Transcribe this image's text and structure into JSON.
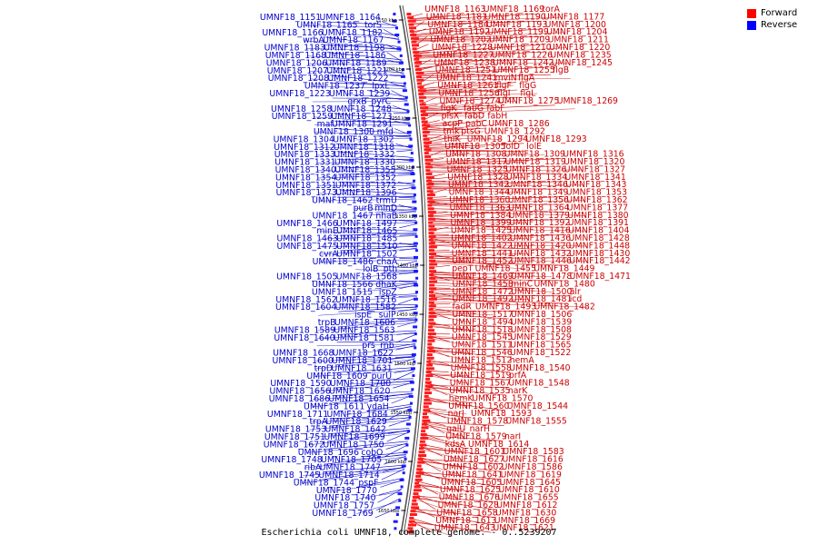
{
  "caption": "Escherichia coli UMNF18, complete genome. - 0..5239207",
  "legend": [
    {
      "label": "Forward",
      "color": "#ff0000"
    },
    {
      "label": "Reverse",
      "color": "#0000ff"
    }
  ],
  "colors": {
    "forward": "#cc0000",
    "reverse": "#0000cc",
    "backbone": "#555555"
  },
  "ticks": [
    {
      "label": "1150 kbp"
    },
    {
      "label": "1200 kbp"
    },
    {
      "label": "1250 kbp"
    },
    {
      "label": "1300 kbp"
    },
    {
      "label": "1350 kbp"
    },
    {
      "label": "1400 kbp"
    },
    {
      "label": "1450 kbp"
    },
    {
      "label": "1500 kbp"
    },
    {
      "label": "1550 kbp"
    },
    {
      "label": "1600 kbp"
    },
    {
      "label": "1650 kbp"
    }
  ],
  "reverse_labels": [
    "UMNF18_1151",
    "UMNF18_1164",
    "UMNF18_1165",
    "torS",
    "UMNF18_1166",
    "UMNF18_1182",
    "wrbA",
    "UMNF18_1167",
    "UMNF18_1183",
    "UMNF18_1198",
    "UMNF18_1168",
    "UMNF18_1186",
    "UMNF18_1206",
    "UMNF18_1189",
    "UMNF18_1207",
    "UMNF18_1221",
    "UMNF18_1208",
    "UMNF18_1222",
    "UMNF18_1237",
    "lpxL",
    "UMNF18_1223",
    "UMNF18_1239",
    "grxB",
    "pyrC",
    "UMNF18_1258",
    "UMNF18_1248",
    "UMNF18_1259",
    "UMNF18_1273",
    "maf",
    "UMNF18_1291",
    "UMNF18_1300",
    "mfd",
    "UMNF18_1304",
    "UMNF18_1302",
    "UMNF18_1312",
    "UMNF18_1318",
    "UMNF18_1333",
    "UMNF18_1332",
    "UMNF18_1331",
    "UMNF18_1330",
    "UMNF18_1340",
    "UMNF18_1355",
    "UMNF18_1354",
    "UMNF18_1352",
    "UMNF18_1351",
    "UMNF18_1372",
    "UMNF18_1373",
    "UMNF18_1396",
    "UMNF18_1462",
    "trmU",
    "purB",
    "minD",
    "UMNF18_1467",
    "nhaB",
    "UMNF18_1466",
    "UMNF18_1497",
    "minE",
    "UMNF18_1465",
    "UMNF18_1463",
    "UMNF18_1485",
    "UMNF18_1475",
    "UMNF18_1510",
    "cvrA",
    "UMNF18_1502",
    "UMNF18_1486",
    "chaA",
    "lolB",
    "pth",
    "UMNF18_1505",
    "UMNF18_1568",
    "UMNF18_1566",
    "dhaK",
    "UMNF18_1515",
    "ispZ",
    "UMNF18_1562",
    "UMNF18_1516",
    "UMNF18_1604",
    "UMNF18_1582",
    "ispE",
    "sulP",
    "trpB",
    "UMNF18_1606",
    "UMNF18_1589",
    "UMNF18_1563",
    "UMNF18_1640",
    "UMNF18_1581",
    "prs",
    "rnb",
    "UMNF18_1668",
    "UMNF18_1622",
    "UMNF18_1600",
    "UMNF18_1701",
    "trpD",
    "UMNF18_1631",
    "UMNF18_1609",
    "purU",
    "UMNF18_1590",
    "UMNF18_1700",
    "UMNF18_1656",
    "UMNF18_1620",
    "UMNF18_1686",
    "UMNF18_1654",
    "UMNF18_1611",
    "ydaH",
    "UMNF18_1711",
    "UMNF18_1684",
    "trpA",
    "UMNF18_1629",
    "UMNF18_1753",
    "UMNF18_1642",
    "UMNF18_1751",
    "UMNF18_1699",
    "UMNF18_1672",
    "UMNF18_1750",
    "UMNF18_1696",
    "cobO",
    "UMNF18_1748",
    "UMNF18_1705",
    "ribA",
    "UMNF18_1747",
    "UMNF18_1745",
    "UMNF18_1714",
    "UMNF18_1744",
    "pspF",
    "UMNF18_1770",
    "UMNF18_1740",
    "UMNF18_1757",
    "UMNF18_1769"
  ],
  "forward_labels": [
    "UMNF18_1163",
    "UMNF18_1169",
    "torA",
    "UMNF18_1181",
    "UMNF18_1190",
    "UMNF18_1177",
    "UMNF18_1184",
    "UMNF18_1193",
    "UMNF18_1200",
    "UMNF18_1192",
    "UMNF18_1199",
    "UMNF18_1204",
    "UMNF18_1202",
    "UMNF18_1209",
    "UMNF18_1211",
    "UMNF18_1228",
    "UMNF18_1210",
    "UMNF18_1220",
    "UMNF18_1227",
    "UMNF18_1226",
    "UMNF18_1235",
    "UMNF18_1238",
    "UMNF18_1242",
    "UMNF18_1245",
    "UMNF18_1251",
    "UMNF18_1255",
    "flgB",
    "UMNF18_1241",
    "mviN",
    "flgA",
    "UMNF18_1261",
    "flgF",
    "flgG",
    "UMNF18_1256",
    "flgI",
    "flgL",
    "UMNF18_1274",
    "UMNF18_1275",
    "UMNF18_1269",
    "flgK",
    "fabG",
    "fabF",
    "plsX",
    "fabD",
    "fabH",
    "acpP",
    "pabC",
    "UMNF18_1286",
    "tmk",
    "ptsG",
    "UMNF18_1292",
    "thiK",
    "UMNF18_1294",
    "UMNF18_1293",
    "UMNF18_1305",
    "lolD",
    "lolE",
    "UMNF18_1308",
    "UMNF18_1309",
    "UMNF18_1316",
    "UMNF18_1317",
    "UMNF18_1319",
    "UMNF18_1320",
    "UMNF18_1325",
    "UMNF18_1326",
    "UMNF18_1327",
    "UMNF18_1328",
    "UMNF18_1334",
    "UMNF18_1341",
    "UMNF18_1342",
    "UMNF18_1346",
    "UMNF18_1343",
    "UMNF18_1344",
    "UMNF18_1349",
    "UMNF18_1353",
    "UMNF18_1360",
    "UMNF18_1356",
    "UMNF18_1362",
    "UMNF18_1363",
    "UMNF18_1364",
    "UMNF18_1377",
    "UMNF18_1384",
    "UMNF18_1379",
    "UMNF18_1380",
    "UMNF18_1399",
    "UMNF18_1392",
    "UMNF18_1391",
    "UMNF18_1425",
    "UMNF18_1416",
    "UMNF18_1404",
    "UMNF18_1402",
    "UMNF18_1436",
    "UMNF18_1428",
    "UMNF18_1422",
    "UMNF18_1420",
    "UMNF18_1448",
    "UMNF18_1441",
    "UMNF18_1432",
    "UMNF18_1430",
    "UMNF18_1452",
    "UMNF18_1446",
    "UMNF18_1442",
    "pepT",
    "UMNF18_1455",
    "UMNF18_1449",
    "UMNF18_1469",
    "UMNF18_1478",
    "UMNF18_1471",
    "UMNF18_1458",
    "minC",
    "UMNF18_1480",
    "UMNF18_1472",
    "UMNF18_1500",
    "alr",
    "UMNF18_1492",
    "UMNF18_1481",
    "icd",
    "fadR",
    "UMNF18_1493",
    "UMNF18_1482",
    "UMNF18_1517",
    "UMNF18_1506",
    "UMNF18_1494",
    "UMNF18_1539",
    "UMNF18_1518",
    "UMNF18_1508",
    "UMNF18_1545",
    "UMNF18_1529",
    "UMNF18_1511",
    "UMNF18_1565",
    "UMNF18_1546",
    "UMNF18_1522",
    "UMNF18_1512",
    "hemA",
    "UMNF18_1558",
    "UMNF18_1540",
    "UMNF18_1519",
    "prfA",
    "UMNF18_1567",
    "UMNF18_1548",
    "UMNF18_1535",
    "narK",
    "hemK",
    "UMNF18_1570",
    "UMNF18_1560",
    "UMNF18_1544",
    "narJ",
    "UMNF18_1593",
    "UMNF18_1578",
    "UMNF18_1555",
    "galU",
    "narH",
    "UMNF18_1579",
    "narI",
    "kdsA",
    "UMNF18_1614",
    "UMNF18_1601",
    "UMNF18_1583",
    "UMNF18_1627",
    "UMNF18_1616",
    "UMNF18_1602",
    "UMNF18_1586",
    "UMNF18_1641",
    "UMNF18_1619",
    "UMNF18_1605",
    "UMNF18_1645",
    "UMNF18_1625",
    "UMNF18_1610",
    "UMNF18_1676",
    "UMNF18_1655",
    "UMNF18_1628",
    "UMNF18_1612",
    "UMNF18_1658",
    "UMNF18_1630",
    "UMNF18_1613",
    "UMNF18_1669",
    "UMNF18_1643",
    "UMNF18_1621"
  ]
}
